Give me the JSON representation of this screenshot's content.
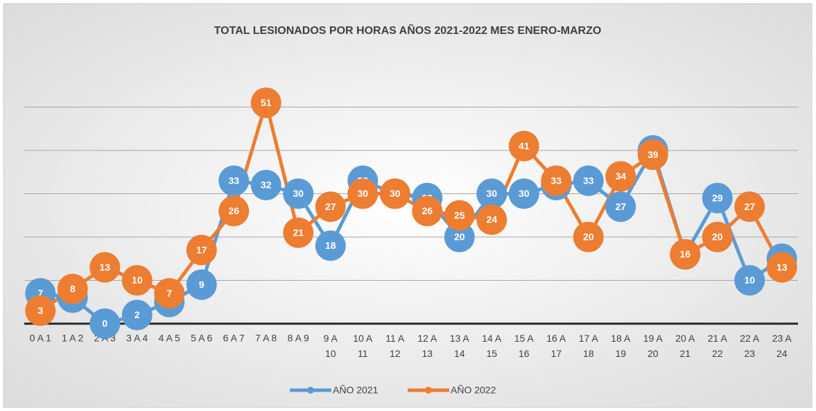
{
  "chart_data": {
    "type": "line",
    "title": "TOTAL LESIONADOS  POR HORAS AÑOS 2021-2022 MES ENERO-MARZO",
    "categories": [
      "0 A 1",
      "1 A 2",
      "2 A 3",
      "3 A 4",
      "4 A 5",
      "5 A 6",
      "6 A 7",
      "7 A 8",
      "8 A 9",
      "9 A 10",
      "10 A 11",
      "11 A 12",
      "12 A 13",
      "13 A 14",
      "14 A 15",
      "15 A 16",
      "16 A 17",
      "17 A 18",
      "18 A 19",
      "19 A 20",
      "20 A 21",
      "21 A 22",
      "22 A 23",
      "23 A 24"
    ],
    "series": [
      {
        "name": "AÑO 2021",
        "color": "#5b9bd5",
        "values": [
          7,
          6,
          0,
          2,
          5,
          9,
          33,
          32,
          30,
          18,
          33,
          30,
          29,
          20,
          30,
          30,
          32,
          33,
          27,
          40,
          16,
          29,
          10,
          15
        ]
      },
      {
        "name": "AÑO 2022",
        "color": "#ed7d31",
        "values": [
          3,
          8,
          13,
          10,
          7,
          17,
          26,
          51,
          21,
          27,
          30,
          30,
          26,
          25,
          24,
          41,
          33,
          20,
          34,
          39,
          16,
          20,
          27,
          13
        ]
      }
    ],
    "ylim": [
      0,
      60
    ],
    "yticks": [
      0,
      10,
      20,
      30,
      40,
      50
    ],
    "grid": true,
    "legend": "bottom"
  }
}
